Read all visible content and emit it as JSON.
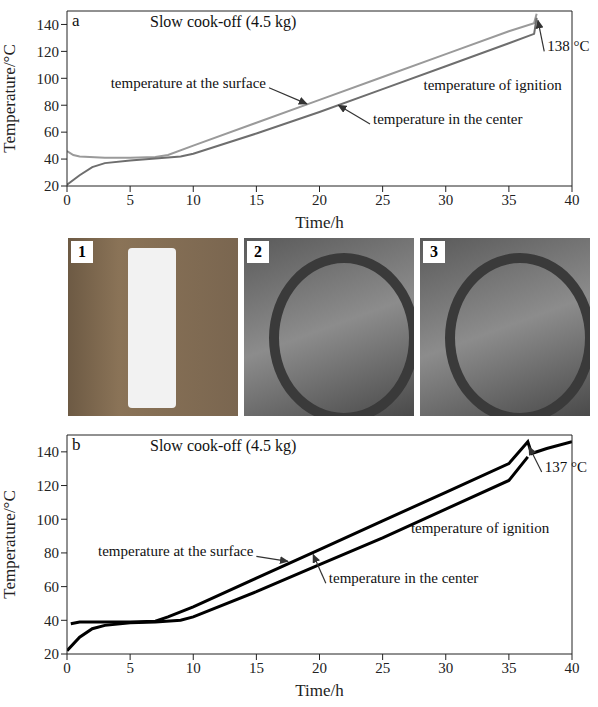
{
  "chart_data": [
    {
      "type": "line",
      "panel": "a",
      "title": "Slow cook-off (4.5 kg)",
      "x_label": "Time/h",
      "y_label": "Temperature/°C",
      "xlim": [
        0,
        40
      ],
      "xticks": [
        0,
        5,
        10,
        15,
        20,
        25,
        30,
        35,
        40
      ],
      "ylim": [
        20,
        150
      ],
      "yticks": [
        20,
        40,
        60,
        80,
        100,
        120,
        140
      ],
      "series": [
        {
          "name": "temperature at the surface",
          "color": "#9a9a9a",
          "x": [
            0,
            0.5,
            1,
            3,
            5,
            7,
            8,
            10,
            15,
            20,
            25,
            30,
            35,
            37,
            37.2
          ],
          "values": [
            46,
            43,
            42,
            41,
            41,
            41.5,
            43,
            50,
            67,
            84,
            101,
            118,
            135,
            141,
            148
          ]
        },
        {
          "name": "temperature in the center",
          "color": "#6e6e6e",
          "x": [
            0,
            1,
            2,
            3,
            5,
            7,
            9,
            10,
            15,
            20,
            25,
            30,
            35,
            37,
            37.2
          ],
          "values": [
            21,
            28,
            34,
            37,
            39,
            40.5,
            42,
            44,
            59,
            75,
            92,
            109,
            126,
            133,
            145
          ]
        }
      ],
      "annotations": [
        {
          "text": "temperature at the surface",
          "x": 16,
          "y": 93,
          "arrow_to": [
            19,
            81
          ]
        },
        {
          "text": "temperature in the center",
          "x": 24,
          "y": 66,
          "arrow_to": [
            21.5,
            80
          ]
        },
        {
          "text": "temperature of ignition",
          "x": 28,
          "y": 91
        },
        {
          "text": "138 °C",
          "x": 37.8,
          "y": 120,
          "arrow_to": [
            37.3,
            143
          ]
        }
      ]
    },
    {
      "type": "line",
      "panel": "b",
      "title": "Slow cook-off (4.5 kg)",
      "x_label": "Time/h",
      "y_label": "Temperature/°C",
      "xlim": [
        0,
        40
      ],
      "xticks": [
        0,
        5,
        10,
        15,
        20,
        25,
        30,
        35,
        40
      ],
      "ylim": [
        20,
        150
      ],
      "yticks": [
        20,
        40,
        60,
        80,
        100,
        120,
        140
      ],
      "series": [
        {
          "name": "temperature at the surface",
          "color": "#000000",
          "x": [
            0.3,
            1,
            3,
            5,
            7,
            8,
            10,
            15,
            20,
            25,
            30,
            35,
            36.5,
            36.8,
            38,
            40
          ],
          "values": [
            38,
            39,
            39,
            39,
            39.5,
            42,
            48,
            65,
            82,
            99,
            116,
            133,
            146,
            139,
            142,
            146
          ]
        },
        {
          "name": "temperature in the center",
          "color": "#000000",
          "x": [
            0,
            1,
            2,
            3,
            5,
            7,
            9,
            10,
            15,
            20,
            25,
            30,
            35,
            36.5
          ],
          "values": [
            22,
            30,
            35,
            37,
            38.5,
            39,
            40,
            42,
            57,
            73,
            89,
            106,
            123,
            137
          ]
        }
      ],
      "annotations": [
        {
          "text": "temperature at the surface",
          "x": 15,
          "y": 78,
          "arrow_to": [
            17.5,
            75
          ]
        },
        {
          "text": "temperature in the center",
          "x": 20.5,
          "y": 62,
          "arrow_to": [
            19.5,
            79
          ]
        },
        {
          "text": "temperature of ignition",
          "x": 27,
          "y": 92
        },
        {
          "text": "137 °C",
          "x": 37.6,
          "y": 128,
          "arrow_to": [
            36.6,
            143
          ]
        }
      ]
    }
  ],
  "photos": [
    {
      "label": "1"
    },
    {
      "label": "2"
    },
    {
      "label": "3"
    }
  ]
}
